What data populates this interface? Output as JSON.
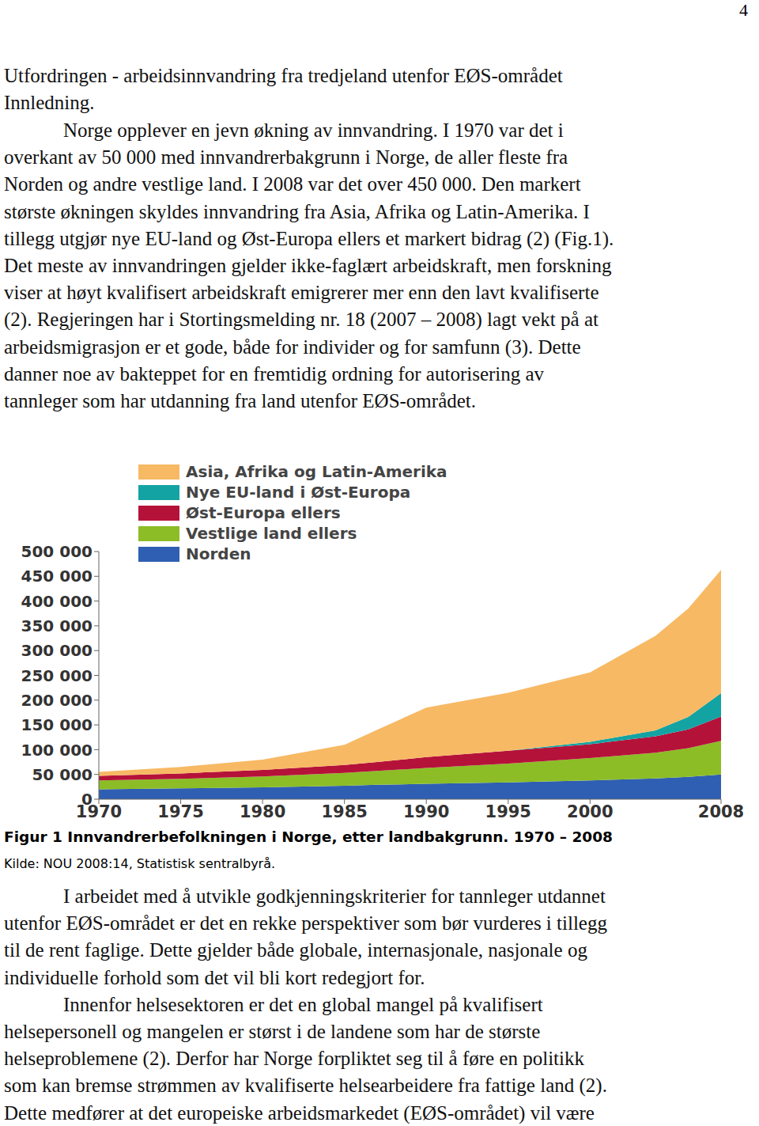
{
  "page": {
    "page_number": "4",
    "heading": "Utfordringen - arbeidsinnvandring fra tredjeland utenfor EØS-området",
    "subheading": "Innledning.",
    "paragraphs_before": [
      [
        "Norge opplever en jevn økning av innvandring. I 1970 var det i",
        "overkant av 50 000 med innvandrerbakgrunn i Norge, de aller fleste fra",
        "Norden og andre vestlige land. I 2008 var det over 450 000. Den markert",
        "største økningen skyldes innvandring fra Asia, Afrika og Latin-Amerika. I",
        "tillegg utgjør nye EU-land og Øst-Europa ellers et markert bidrag (2) (Fig.1).",
        "Det meste av innvandringen gjelder ikke-faglært arbeidskraft, men forskning",
        "viser at høyt kvalifisert arbeidskraft emigrerer mer enn den lavt kvalifiserte",
        "(2). Regjeringen har i Stortingsmelding nr. 18 (2007 – 2008) lagt vekt på at",
        "arbeidsmigrasjon er et gode, både for individer og for samfunn (3). Dette",
        "danner noe av bakteppet for en fremtidig ordning for autorisering av",
        "tannleger som har utdanning fra land utenfor EØS-området."
      ]
    ],
    "caption": "Figur 1 Innvandrerbefolkningen i Norge, etter landbakgrunn. 1970 – 2008",
    "source": "Kilde: NOU 2008:14, Statistisk sentralbyrå.",
    "paragraphs_after": [
      [
        "I arbeidet med å utvikle godkjenningskriterier for tannleger utdannet",
        "utenfor EØS-området er det en rekke perspektiver som bør vurderes i tillegg",
        "til de rent faglige. Dette gjelder både globale, internasjonale, nasjonale og",
        "individuelle forhold som det vil bli kort redegjort for."
      ],
      [
        "Innenfor helsesektoren er det en global mangel på kvalifisert",
        "helsepersonell og mangelen er størst i de landene som har de største",
        "helseproblemene (2). Derfor har Norge forpliktet seg til å føre en politikk",
        "som kan bremse strømmen av kvalifiserte helsearbeidere fra fattige land (2).",
        "Dette medfører at det europeiske arbeidsmarkedet (EØS-området) vil være"
      ]
    ]
  },
  "chart_data": {
    "type": "area",
    "stacked": true,
    "grid": false,
    "legend": "top-left",
    "x": [
      1970,
      1975,
      1980,
      1985,
      1987,
      1990,
      1995,
      2000,
      2004,
      2006,
      2008
    ],
    "series": [
      {
        "name": "Norden",
        "color": "#2f5fb3",
        "values": [
          20000,
          22000,
          24000,
          27000,
          29000,
          31000,
          34000,
          38000,
          42000,
          45000,
          50000
        ]
      },
      {
        "name": "Vestlige land ellers",
        "color": "#8cbd26",
        "values": [
          18000,
          19000,
          22000,
          26000,
          28000,
          32000,
          38000,
          45000,
          52000,
          58000,
          68000
        ]
      },
      {
        "name": "Øst-Europa ellers",
        "color": "#b5123a",
        "values": [
          9000,
          11000,
          13000,
          16000,
          18000,
          22000,
          26000,
          28000,
          33000,
          38000,
          49000
        ]
      },
      {
        "name": "Nye EU-land i Øst-Europa",
        "color": "#14a3a3",
        "values": [
          0,
          0,
          0,
          0,
          0,
          0,
          0,
          5000,
          12000,
          25000,
          47000
        ]
      },
      {
        "name": "Asia, Afrika og Latin-Amerika",
        "color": "#f7b964",
        "values": [
          8000,
          13000,
          21000,
          41000,
          65000,
          100000,
          117000,
          140000,
          191000,
          219000,
          249000
        ]
      }
    ],
    "xlim": [
      1970,
      2008
    ],
    "xticks": [
      1970,
      1975,
      1980,
      1985,
      1990,
      1995,
      2000,
      2008
    ],
    "ylim": [
      0,
      500000
    ],
    "yticks": [
      0,
      {
        "value": 50000,
        "label": "50 000"
      },
      {
        "value": 100000,
        "label": "100 000"
      },
      {
        "value": 150000,
        "label": "150 000"
      },
      {
        "value": 200000,
        "label": "200 000"
      },
      {
        "value": 250000,
        "label": "250 000"
      },
      {
        "value": 300000,
        "label": "300 000"
      },
      {
        "value": 350000,
        "label": "350 000"
      },
      {
        "value": 400000,
        "label": "400 000"
      },
      {
        "value": 450000,
        "label": "450 000"
      },
      {
        "value": 500000,
        "label": "500 000"
      }
    ]
  }
}
